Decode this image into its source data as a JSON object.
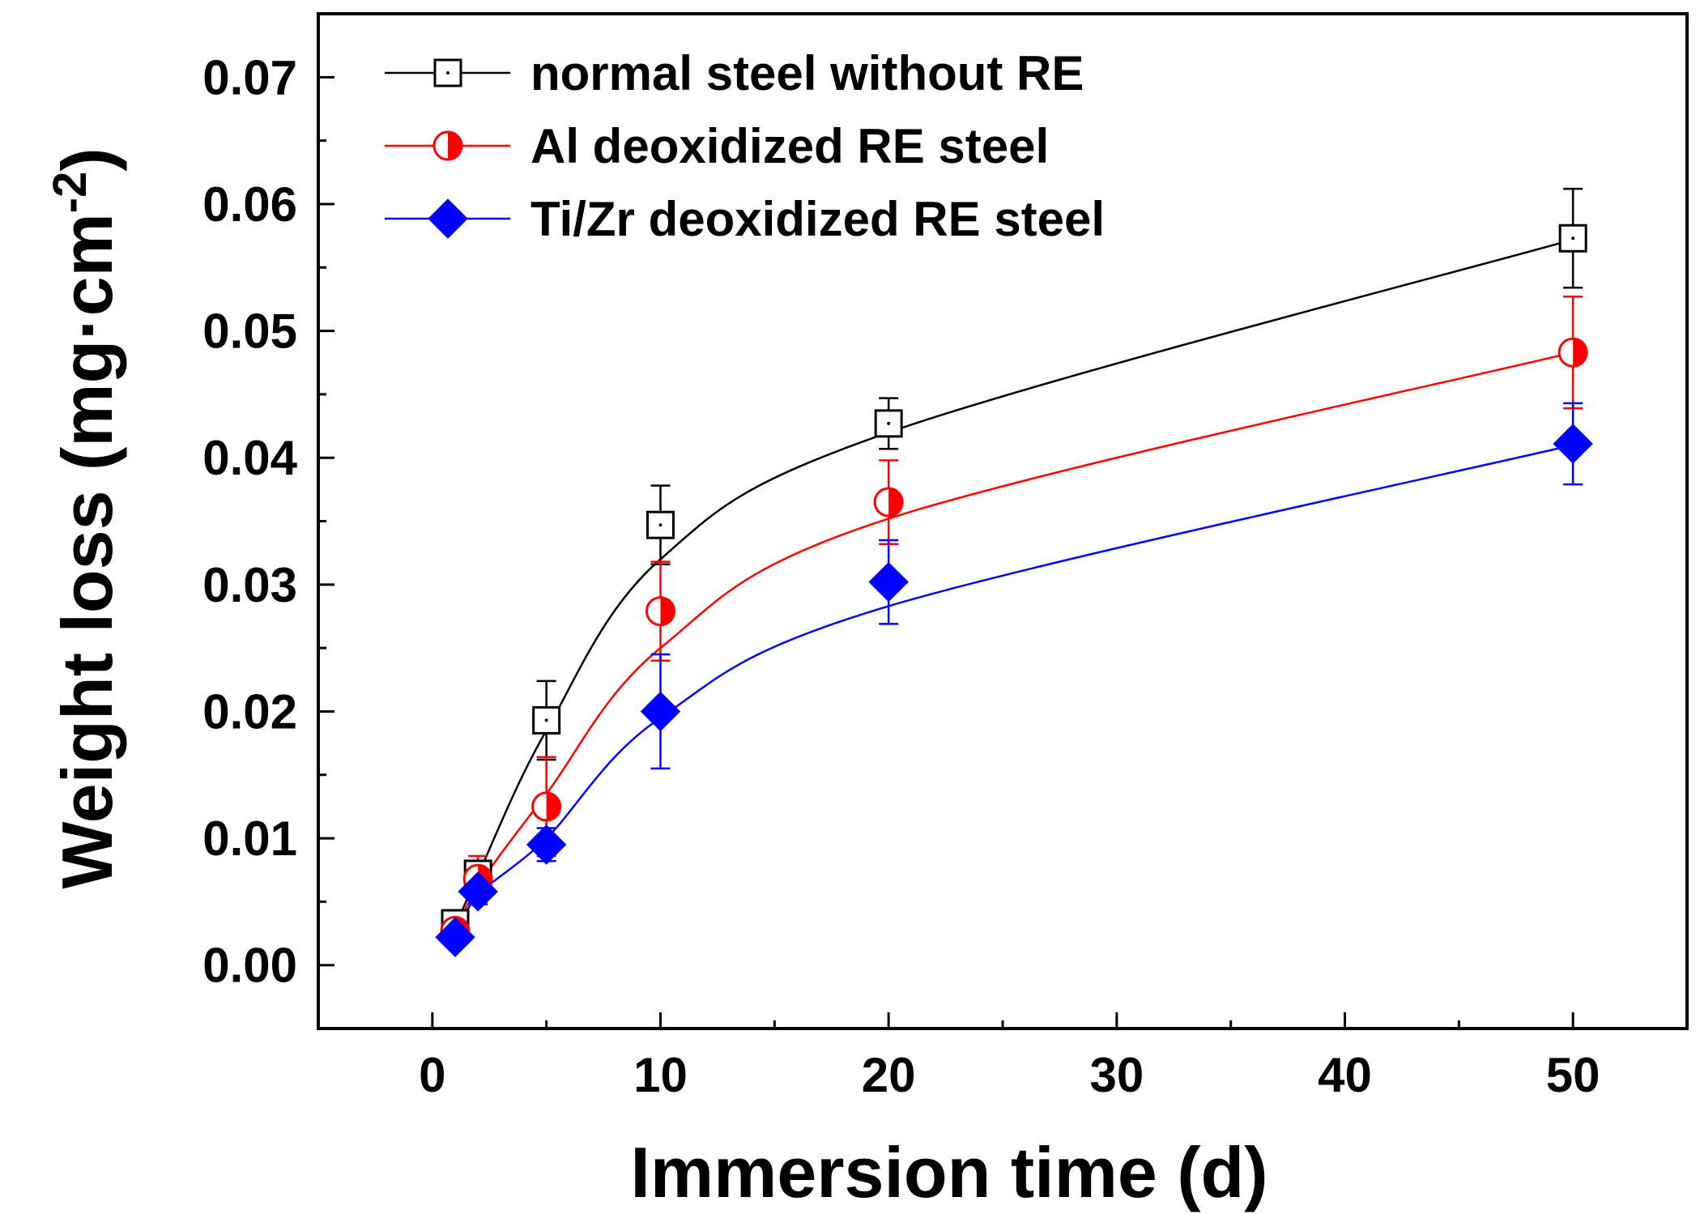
{
  "chart_data": {
    "type": "scatter",
    "xlabel": "Immersion time (d)",
    "ylabel": {
      "main": "Weight loss (mg·cm",
      "superscript": "-2",
      "close": ")"
    },
    "xlim": [
      -5,
      55
    ],
    "ylim": [
      -0.005,
      0.075
    ],
    "x_ticks": [
      0,
      10,
      20,
      30,
      40,
      50
    ],
    "x_tick_labels": [
      "0",
      "10",
      "20",
      "30",
      "40",
      "50"
    ],
    "y_ticks": [
      0,
      0.01,
      0.02,
      0.03,
      0.04,
      0.05,
      0.06,
      0.07
    ],
    "y_tick_labels": [
      "0.00",
      "0.01",
      "0.02",
      "0.03",
      "0.04",
      "0.05",
      "0.06",
      "0.07"
    ],
    "legend_position": "top-left",
    "series": [
      {
        "name": "normal steel without RE",
        "marker": "open-square",
        "color": "#000000",
        "x": [
          1,
          2,
          5,
          10,
          20,
          50
        ],
        "y": [
          0.0033,
          0.0072,
          0.0193,
          0.0347,
          0.0427,
          0.0573
        ],
        "error": [
          0.0006,
          0.001,
          0.0031,
          0.0031,
          0.002,
          0.0039
        ],
        "fit_y": [
          0.003,
          0.0071,
          0.0185,
          0.032,
          0.042,
          0.0572
        ]
      },
      {
        "name": "Al deoxidized RE steel",
        "marker": "half-filled-circle",
        "color": "#ff0000",
        "x": [
          1,
          2,
          5,
          10,
          20,
          50
        ],
        "y": [
          0.0027,
          0.0068,
          0.0125,
          0.0279,
          0.0365,
          0.0483
        ],
        "error": [
          0.0006,
          0.0018,
          0.0039,
          0.0039,
          0.0033,
          0.0044
        ],
        "fit_y": [
          0.0025,
          0.0062,
          0.0135,
          0.025,
          0.0352,
          0.0483
        ]
      },
      {
        "name": "Ti/Zr deoxidized RE steel",
        "marker": "filled-diamond",
        "color": "#0000ff",
        "x": [
          1,
          2,
          5,
          10,
          20,
          50
        ],
        "y": [
          0.0022,
          0.0058,
          0.0095,
          0.02,
          0.0302,
          0.0411
        ],
        "error": [
          0.0005,
          0.001,
          0.0013,
          0.0045,
          0.0033,
          0.0032
        ],
        "fit_y": [
          0.0022,
          0.0055,
          0.01,
          0.0195,
          0.0283,
          0.041
        ]
      }
    ]
  }
}
